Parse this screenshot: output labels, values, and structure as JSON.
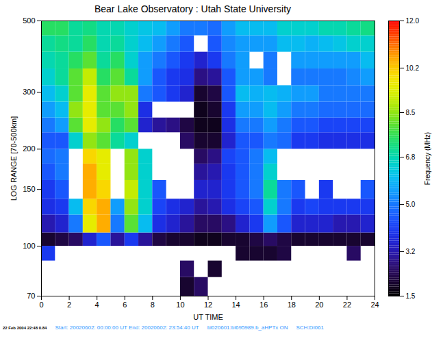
{
  "chart_data": {
    "type": "heatmap",
    "title": "Bear Lake Observatory : Utah State University",
    "x_label": "UT TIME",
    "y_label": "LOG RANGE [70-500km]",
    "log": "y",
    "xlim": [
      0,
      24
    ],
    "xticks": [
      0,
      2,
      4,
      6,
      8,
      10,
      12,
      14,
      16,
      18,
      20,
      22,
      24
    ],
    "ylim": [
      70,
      500
    ],
    "yticks": [
      70,
      100,
      150,
      200,
      300,
      500
    ],
    "x_edges": [
      0,
      1,
      2,
      3,
      4,
      5,
      6,
      7,
      8,
      9,
      10,
      11,
      12,
      13,
      14,
      15,
      16,
      17,
      18,
      19,
      20,
      21,
      22,
      23,
      24
    ],
    "y_edges": [
      70,
      80,
      90,
      100,
      110,
      125,
      140,
      160,
      180,
      200,
      225,
      250,
      280,
      315,
      355,
      400,
      450,
      500
    ],
    "cells": [
      [
        null,
        null,
        null,
        null,
        null,
        null,
        null,
        null,
        null,
        null,
        2.0,
        2.5,
        null,
        null,
        null,
        null,
        null,
        null,
        null,
        null,
        null,
        null,
        null,
        null
      ],
      [
        null,
        null,
        null,
        null,
        null,
        null,
        null,
        null,
        null,
        null,
        2.5,
        null,
        2.0,
        null,
        null,
        null,
        null,
        null,
        null,
        null,
        null,
        null,
        null,
        null
      ],
      [
        4.0,
        null,
        null,
        null,
        null,
        null,
        null,
        null,
        null,
        null,
        null,
        null,
        null,
        null,
        2.0,
        2.0,
        2.0,
        2.2,
        null,
        null,
        null,
        null,
        2.5,
        null
      ],
      [
        2.0,
        2.2,
        2.5,
        3.5,
        4.5,
        3.0,
        4.0,
        3.0,
        2.2,
        2.0,
        2.0,
        1.8,
        1.8,
        2.0,
        2.0,
        2.2,
        2.5,
        2.2,
        2.0,
        2.0,
        2.0,
        2.0,
        2.0,
        2.0
      ],
      [
        3.2,
        3.5,
        5.0,
        9.5,
        10.5,
        5.0,
        8.0,
        6.0,
        3.8,
        3.5,
        3.0,
        2.5,
        2.5,
        2.8,
        3.5,
        4.0,
        5.5,
        4.5,
        3.5,
        3.5,
        3.5,
        3.2,
        3.2,
        3.5
      ],
      [
        3.8,
        4.0,
        6.0,
        10.0,
        10.5,
        5.5,
        8.5,
        6.5,
        4.2,
        3.8,
        3.5,
        3.0,
        3.2,
        3.8,
        4.2,
        4.5,
        6.5,
        5.0,
        4.0,
        4.2,
        4.0,
        4.0,
        4.0,
        4.0
      ],
      [
        4.0,
        4.5,
        null,
        10.5,
        10.0,
        null,
        9.0,
        6.5,
        4.5,
        null,
        null,
        3.5,
        3.5,
        4.0,
        4.5,
        5.0,
        7.0,
        5.0,
        4.5,
        null,
        4.0,
        null,
        null,
        4.5
      ],
      [
        4.5,
        5.0,
        null,
        10.5,
        9.5,
        null,
        8.5,
        6.5,
        null,
        null,
        null,
        3.0,
        3.2,
        4.0,
        4.5,
        5.0,
        6.5,
        null,
        null,
        null,
        null,
        null,
        null,
        null
      ],
      [
        4.8,
        5.0,
        null,
        10.0,
        9.5,
        null,
        8.5,
        6.5,
        null,
        null,
        null,
        2.5,
        2.8,
        4.2,
        4.5,
        5.0,
        6.0,
        null,
        null,
        null,
        null,
        null,
        null,
        null
      ],
      [
        4.5,
        4.5,
        6.5,
        8.5,
        8.0,
        7.0,
        6.5,
        null,
        null,
        null,
        2.5,
        2.0,
        2.0,
        3.5,
        4.5,
        4.5,
        5.0,
        4.8,
        4.0,
        4.0,
        3.8,
        3.8,
        3.8,
        3.8
      ],
      [
        5.0,
        5.5,
        8.0,
        9.5,
        8.5,
        7.5,
        8.0,
        3.5,
        3.0,
        2.8,
        2.2,
        1.8,
        1.8,
        3.8,
        5.0,
        5.0,
        5.5,
        5.0,
        4.5,
        4.5,
        4.2,
        4.2,
        4.2,
        4.2
      ],
      [
        5.5,
        6.0,
        8.5,
        9.5,
        8.0,
        8.0,
        8.5,
        3.8,
        null,
        null,
        null,
        1.8,
        2.0,
        4.0,
        5.5,
        5.5,
        6.0,
        5.5,
        5.0,
        5.0,
        4.8,
        4.8,
        4.8,
        4.8
      ],
      [
        6.0,
        6.5,
        8.0,
        9.5,
        8.0,
        8.5,
        8.5,
        5.0,
        4.5,
        4.0,
        3.5,
        2.0,
        2.2,
        4.5,
        6.0,
        5.8,
        6.0,
        5.8,
        5.5,
        5.5,
        5.0,
        5.0,
        5.0,
        5.0
      ],
      [
        6.5,
        7.0,
        8.0,
        9.0,
        7.5,
        8.0,
        7.0,
        5.5,
        4.5,
        4.0,
        3.8,
        2.8,
        3.0,
        4.5,
        5.5,
        5.5,
        5.0,
        null,
        5.0,
        5.0,
        5.0,
        5.0,
        5.2,
        5.5
      ],
      [
        6.8,
        7.0,
        7.5,
        8.0,
        7.0,
        7.5,
        6.5,
        5.5,
        5.0,
        4.5,
        4.0,
        3.5,
        4.0,
        5.0,
        5.5,
        null,
        5.0,
        null,
        5.5,
        5.5,
        5.5,
        5.5,
        5.5,
        6.0
      ],
      [
        7.0,
        7.2,
        7.0,
        7.5,
        6.8,
        7.0,
        6.5,
        6.0,
        5.5,
        5.0,
        4.5,
        null,
        4.5,
        5.2,
        5.5,
        5.5,
        5.5,
        6.0,
        6.0,
        5.8,
        6.0,
        6.2,
        6.5,
        6.5
      ],
      [
        7.5,
        7.5,
        7.0,
        7.2,
        6.8,
        6.8,
        6.5,
        6.2,
        6.0,
        5.5,
        5.0,
        5.0,
        4.8,
        5.5,
        6.0,
        6.0,
        6.0,
        6.5,
        6.5,
        6.5,
        6.8,
        6.8,
        7.0,
        7.2
      ]
    ],
    "colorbar": {
      "label": "Frequency (MHz)",
      "lim": [
        1.5,
        12
      ],
      "ticks": [
        1.5,
        3.2,
        {
          "value": 5,
          "label": "5.0"
        },
        6.8,
        8.5,
        10.2,
        {
          "value": 12,
          "label": "12.0"
        }
      ]
    },
    "stamp": "22 Feb 2004 22:48 0.84",
    "caption": [
      "Start: 20020602: 00:00:00 UT  End: 20020602: 23:54:40 UT",
      "bl020601:bl695989.b_aHPTx ON",
      "SCH:DI061"
    ]
  }
}
